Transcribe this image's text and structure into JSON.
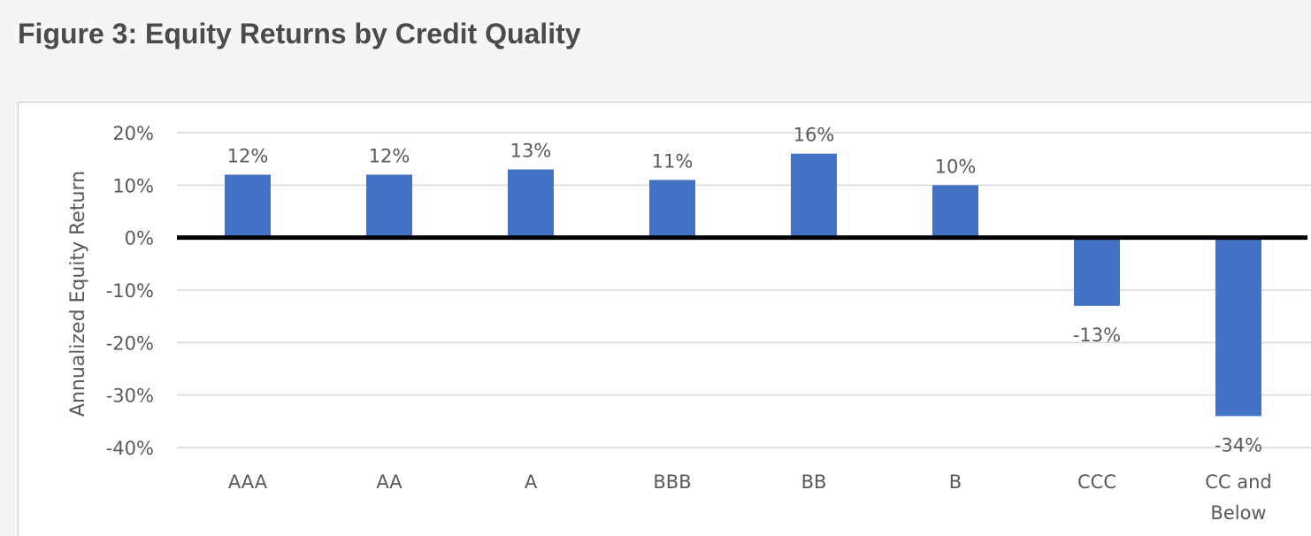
{
  "figure_title": "Figure 3: Equity Returns by Credit Quality",
  "chart_data": {
    "type": "bar",
    "title": "",
    "xlabel": "",
    "ylabel": "Annualized Equity Return",
    "categories": [
      "AAA",
      "AA",
      "A",
      "BBB",
      "BB",
      "B",
      "CCC",
      "CC and Below"
    ],
    "values": [
      12,
      12,
      13,
      11,
      16,
      10,
      -13,
      -34
    ],
    "data_labels": [
      "12%",
      "12%",
      "13%",
      "11%",
      "16%",
      "10%",
      "-13%",
      "-34%"
    ],
    "ylim": [
      -40,
      20
    ],
    "yticks": [
      20,
      10,
      0,
      -10,
      -20,
      -30,
      -40
    ],
    "ytick_labels": [
      "20%",
      "10%",
      "0%",
      "-10%",
      "-20%",
      "-30%",
      "-40%"
    ],
    "grid": true,
    "legend": "none",
    "bar_color": "#4472c4",
    "gridline_color": "#d9d9d9",
    "zero_line_color": "#000000"
  }
}
